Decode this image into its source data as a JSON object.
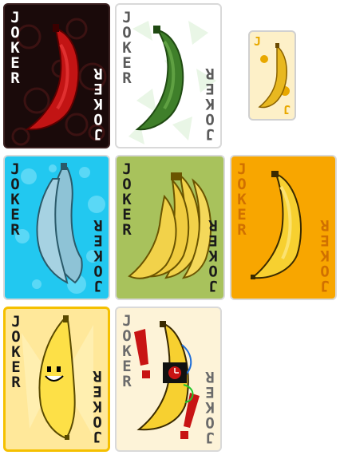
{
  "cards": [
    {
      "id": "red",
      "label": "JOKER",
      "background": "#1a0a0a",
      "banana": "#c21414",
      "text": "#ffffff"
    },
    {
      "id": "green",
      "label": "JOKER",
      "background": "#ffffff",
      "banana": "#3f7f2a",
      "text": "#5a5a5a"
    },
    {
      "id": "small",
      "label": "J",
      "background": "#fdf0c8",
      "banana": "#e8b820",
      "text": "#e8a800"
    },
    {
      "id": "blue",
      "label": "JOKER",
      "background": "#22c8f0",
      "banana": "#8ec3d6",
      "text": "#1a1a1a"
    },
    {
      "id": "bunch",
      "label": "JOKER",
      "background": "#a8c25c",
      "banana": "#f2d24a",
      "text": "#1a1a1a"
    },
    {
      "id": "orange",
      "label": "JOKER",
      "background": "#f8a600",
      "banana": "#f7d030",
      "text": "#d07000"
    },
    {
      "id": "smiley",
      "label": "JOKER",
      "background": "#ffe89a",
      "banana": "#fde047",
      "text": "#1a1a1a"
    },
    {
      "id": "bomb",
      "label": "JOKER",
      "background": "#fdf3d8",
      "banana": "#f7d030",
      "text": "#6b6b6b"
    }
  ]
}
